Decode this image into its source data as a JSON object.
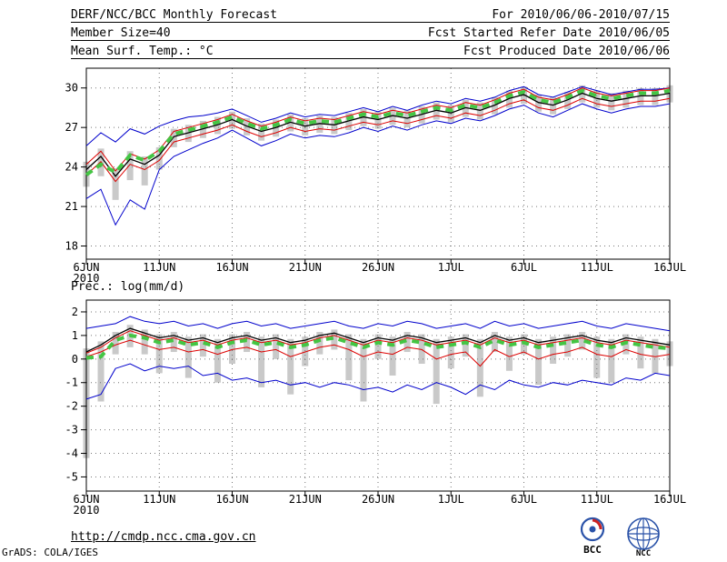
{
  "header": {
    "line1_left": "DERF/NCC/BCC Monthly Forecast",
    "line1_right": "For 2010/06/06-2010/07/15",
    "line2_left": "Member Size=40",
    "line2_right": "Fcst Started Refer Date 2010/06/05",
    "line3_left": "Mean Surf. Temp.: °C",
    "line3_right": "Fcst Produced Date 2010/06/06"
  },
  "footer": {
    "url": "http://cmdp.ncc.cma.gov.cn",
    "credit": "GrADS: COLA/IGES"
  },
  "logos": {
    "bcc": "BCC",
    "ncc": "NCC"
  },
  "chart_data": [
    {
      "type": "line",
      "title": "Mean Surf. Temp.: °C",
      "xlabel": "",
      "ylabel": "",
      "grid": "dotted",
      "ylim": [
        17,
        31.5
      ],
      "yticks": [
        30,
        27,
        24,
        21,
        18
      ],
      "x_axis": {
        "tick_labels": [
          "6JUN",
          "11JUN",
          "16JUN",
          "21JUN",
          "26JUN",
          "1JUL",
          "6JUL",
          "11JUL",
          "16JUL"
        ],
        "tick_days": [
          0,
          5,
          10,
          15,
          20,
          25,
          30,
          35,
          40
        ],
        "year_label": "2010"
      },
      "bars": {
        "name": "ensemble-spread",
        "color": "#c9c9c9",
        "low": [
          22.5,
          23.3,
          21.5,
          23.0,
          22.6,
          23.8,
          25.5,
          25.9,
          26.2,
          26.5,
          26.9,
          26.4,
          26.0,
          26.3,
          26.7,
          26.4,
          26.6,
          26.5,
          26.8,
          27.1,
          26.9,
          27.2,
          27.0,
          27.3,
          27.6,
          27.4,
          27.8,
          27.6,
          28.0,
          28.5,
          28.8,
          28.2,
          28.0,
          28.4,
          28.9,
          28.5,
          28.3,
          28.5,
          28.7,
          28.7,
          28.9
        ],
        "high": [
          24.4,
          25.4,
          23.9,
          25.2,
          24.8,
          25.5,
          26.9,
          27.2,
          27.5,
          27.8,
          28.2,
          27.7,
          27.3,
          27.6,
          28.0,
          27.7,
          27.9,
          27.8,
          28.1,
          28.4,
          28.2,
          28.5,
          28.3,
          28.6,
          28.9,
          28.7,
          29.1,
          28.9,
          29.3,
          29.8,
          30.1,
          29.5,
          29.3,
          29.7,
          30.2,
          29.8,
          29.6,
          29.8,
          30.0,
          30.0,
          30.2
        ]
      },
      "series": [
        {
          "name": "ensemble-max",
          "color": "#0000cc",
          "width": 1,
          "values": [
            25.6,
            26.6,
            25.9,
            26.9,
            26.5,
            27.1,
            27.5,
            27.8,
            27.9,
            28.1,
            28.4,
            27.9,
            27.4,
            27.7,
            28.1,
            27.8,
            28.0,
            27.9,
            28.2,
            28.5,
            28.2,
            28.6,
            28.3,
            28.7,
            29.0,
            28.8,
            29.2,
            29.0,
            29.3,
            29.8,
            30.1,
            29.5,
            29.3,
            29.7,
            30.1,
            29.8,
            29.5,
            29.7,
            29.9,
            29.9,
            30.0
          ]
        },
        {
          "name": "ensemble-min",
          "color": "#0000cc",
          "width": 1,
          "values": [
            21.6,
            22.3,
            19.6,
            21.5,
            20.8,
            23.8,
            24.8,
            25.3,
            25.8,
            26.2,
            26.8,
            26.2,
            25.6,
            26.0,
            26.5,
            26.2,
            26.4,
            26.3,
            26.6,
            27.0,
            26.7,
            27.1,
            26.8,
            27.2,
            27.5,
            27.3,
            27.7,
            27.5,
            27.9,
            28.4,
            28.7,
            28.1,
            27.8,
            28.3,
            28.8,
            28.4,
            28.1,
            28.4,
            28.6,
            28.6,
            28.8
          ]
        },
        {
          "name": "upper-quartile",
          "color": "#dd0000",
          "width": 1,
          "values": [
            24.2,
            25.2,
            23.7,
            25.0,
            24.6,
            25.3,
            26.7,
            27.0,
            27.3,
            27.6,
            28.0,
            27.5,
            27.1,
            27.4,
            27.8,
            27.5,
            27.7,
            27.6,
            27.9,
            28.2,
            28.0,
            28.3,
            28.1,
            28.4,
            28.7,
            28.5,
            28.9,
            28.7,
            29.1,
            29.6,
            29.9,
            29.3,
            29.1,
            29.5,
            30.0,
            29.6,
            29.4,
            29.6,
            29.8,
            29.8,
            30.0
          ]
        },
        {
          "name": "lower-quartile",
          "color": "#dd0000",
          "width": 1,
          "values": [
            23.4,
            24.4,
            22.9,
            24.2,
            23.8,
            24.5,
            25.9,
            26.2,
            26.5,
            26.8,
            27.2,
            26.7,
            26.3,
            26.6,
            27.0,
            26.7,
            26.9,
            26.8,
            27.1,
            27.4,
            27.2,
            27.5,
            27.3,
            27.6,
            27.9,
            27.7,
            28.1,
            27.9,
            28.3,
            28.8,
            29.1,
            28.5,
            28.3,
            28.7,
            29.2,
            28.8,
            28.6,
            28.8,
            29.0,
            29.0,
            29.2
          ]
        },
        {
          "name": "ensemble-mean",
          "color": "#000000",
          "width": 1.3,
          "values": [
            23.8,
            24.8,
            23.3,
            24.6,
            24.2,
            24.9,
            26.3,
            26.6,
            26.9,
            27.2,
            27.6,
            27.1,
            26.7,
            27.0,
            27.4,
            27.1,
            27.3,
            27.2,
            27.5,
            27.8,
            27.6,
            27.9,
            27.7,
            28.0,
            28.3,
            28.1,
            28.5,
            28.3,
            28.7,
            29.2,
            29.5,
            28.9,
            28.7,
            29.1,
            29.6,
            29.2,
            29.0,
            29.2,
            29.4,
            29.4,
            29.6
          ]
        },
        {
          "name": "forecast-highlight",
          "color": "#44c544",
          "width": 4,
          "dash": "8 6",
          "values": [
            23.4,
            24.2,
            23.6,
            24.9,
            24.5,
            25.2,
            26.5,
            26.8,
            27.1,
            27.4,
            27.8,
            27.3,
            26.9,
            27.2,
            27.6,
            27.3,
            27.5,
            27.4,
            27.7,
            28.0,
            27.8,
            28.1,
            27.9,
            28.2,
            28.5,
            28.3,
            28.7,
            28.5,
            28.9,
            29.4,
            29.7,
            29.1,
            28.9,
            29.3,
            29.8,
            29.4,
            29.2,
            29.4,
            29.6,
            29.6,
            29.8
          ]
        }
      ]
    },
    {
      "type": "line",
      "title": "Prec.: log(mm/d)",
      "xlabel": "",
      "ylabel": "",
      "grid": "dotted",
      "ylim": [
        -5.6,
        2.5
      ],
      "yticks": [
        2,
        1,
        0,
        -1,
        -2,
        -3,
        -4,
        -5
      ],
      "x_axis": {
        "tick_labels": [
          "6JUN",
          "11JUN",
          "16JUN",
          "21JUN",
          "26JUN",
          "1JUL",
          "6JUL",
          "11JUL",
          "16JUL"
        ],
        "tick_days": [
          0,
          5,
          10,
          15,
          20,
          25,
          30,
          35,
          40
        ],
        "year_label": "2010"
      },
      "bars": {
        "name": "ensemble-spread",
        "color": "#c9c9c9",
        "low": [
          -4.2,
          -1.8,
          0.2,
          0.5,
          0.2,
          -0.6,
          0.3,
          -0.8,
          0.1,
          -1.0,
          -0.2,
          0.3,
          -1.2,
          0.0,
          -1.5,
          -0.3,
          0.2,
          0.4,
          -0.9,
          -1.8,
          0.0,
          -0.7,
          0.3,
          -0.2,
          -1.9,
          -0.4,
          0.1,
          -1.6,
          0.3,
          -0.5,
          0.2,
          -1.1,
          -0.2,
          0.1,
          0.4,
          -0.8,
          -1.0,
          0.2,
          -0.4,
          -0.6,
          -0.3
        ],
        "high": [
          0.45,
          0.75,
          1.15,
          1.45,
          1.25,
          1.05,
          1.15,
          0.95,
          1.05,
          0.85,
          1.05,
          1.15,
          0.95,
          1.05,
          0.85,
          0.95,
          1.15,
          1.25,
          1.05,
          0.85,
          1.05,
          0.95,
          1.15,
          1.05,
          0.85,
          0.95,
          1.05,
          0.85,
          1.15,
          0.95,
          1.05,
          0.85,
          0.95,
          1.05,
          1.15,
          0.95,
          0.85,
          1.05,
          0.95,
          0.85,
          0.75
        ]
      },
      "series": [
        {
          "name": "ensemble-max",
          "color": "#0000cc",
          "width": 1,
          "values": [
            1.3,
            1.4,
            1.5,
            1.8,
            1.6,
            1.5,
            1.6,
            1.4,
            1.5,
            1.3,
            1.5,
            1.6,
            1.4,
            1.5,
            1.3,
            1.4,
            1.5,
            1.6,
            1.4,
            1.3,
            1.5,
            1.4,
            1.6,
            1.5,
            1.3,
            1.4,
            1.5,
            1.3,
            1.6,
            1.4,
            1.5,
            1.3,
            1.4,
            1.5,
            1.6,
            1.4,
            1.3,
            1.5,
            1.4,
            1.3,
            1.2
          ]
        },
        {
          "name": "ensemble-min",
          "color": "#0000cc",
          "width": 1,
          "values": [
            -1.7,
            -1.5,
            -0.4,
            -0.2,
            -0.5,
            -0.3,
            -0.4,
            -0.3,
            -0.7,
            -0.6,
            -0.9,
            -0.8,
            -1.0,
            -0.9,
            -1.1,
            -1.0,
            -1.2,
            -1.0,
            -1.1,
            -1.3,
            -1.2,
            -1.4,
            -1.1,
            -1.3,
            -1.0,
            -1.2,
            -1.5,
            -1.1,
            -1.3,
            -0.9,
            -1.1,
            -1.2,
            -1.0,
            -1.1,
            -0.9,
            -1.0,
            -1.1,
            -0.8,
            -0.9,
            -0.6,
            -0.7
          ]
        },
        {
          "name": "upper-quartile",
          "color": "#dd0000",
          "width": 1,
          "values": [
            0.25,
            0.5,
            0.9,
            1.2,
            1.0,
            0.8,
            0.9,
            0.7,
            0.8,
            0.6,
            0.8,
            0.9,
            0.7,
            0.8,
            0.6,
            0.7,
            0.9,
            1.0,
            0.8,
            0.6,
            0.8,
            0.7,
            0.9,
            0.8,
            0.6,
            0.7,
            0.8,
            0.6,
            0.9,
            0.7,
            0.8,
            0.6,
            0.7,
            0.8,
            0.9,
            0.7,
            0.6,
            0.8,
            0.7,
            0.6,
            0.5
          ]
        },
        {
          "name": "lower-quartile",
          "color": "#dd0000",
          "width": 1,
          "values": [
            0.1,
            0.3,
            0.6,
            0.8,
            0.6,
            0.4,
            0.5,
            0.3,
            0.4,
            0.2,
            0.4,
            0.5,
            0.3,
            0.4,
            0.1,
            0.3,
            0.5,
            0.6,
            0.4,
            0.1,
            0.3,
            0.2,
            0.5,
            0.4,
            0.0,
            0.2,
            0.3,
            -0.3,
            0.4,
            0.1,
            0.3,
            0.0,
            0.2,
            0.3,
            0.5,
            0.2,
            0.1,
            0.4,
            0.2,
            0.1,
            0.2
          ]
        },
        {
          "name": "ensemble-mean",
          "color": "#000000",
          "width": 1.3,
          "values": [
            0.3,
            0.6,
            1.0,
            1.3,
            1.1,
            0.9,
            1.0,
            0.8,
            0.9,
            0.7,
            0.9,
            1.0,
            0.8,
            0.9,
            0.7,
            0.8,
            1.0,
            1.1,
            0.9,
            0.7,
            0.9,
            0.8,
            1.0,
            0.9,
            0.7,
            0.8,
            0.9,
            0.7,
            1.0,
            0.8,
            0.9,
            0.7,
            0.8,
            0.9,
            1.0,
            0.8,
            0.7,
            0.9,
            0.8,
            0.7,
            0.6
          ]
        },
        {
          "name": "forecast-highlight",
          "color": "#44c544",
          "width": 4,
          "dash": "8 6",
          "values": [
            0.05,
            0.1,
            0.8,
            1.0,
            0.9,
            0.7,
            0.8,
            0.6,
            0.7,
            0.5,
            0.7,
            0.8,
            0.6,
            0.7,
            0.5,
            0.6,
            0.8,
            0.9,
            0.7,
            0.5,
            0.7,
            0.6,
            0.8,
            0.7,
            0.5,
            0.6,
            0.7,
            0.5,
            0.8,
            0.6,
            0.7,
            0.5,
            0.6,
            0.7,
            0.8,
            0.6,
            0.5,
            0.7,
            0.6,
            0.5,
            0.45
          ]
        }
      ]
    }
  ]
}
